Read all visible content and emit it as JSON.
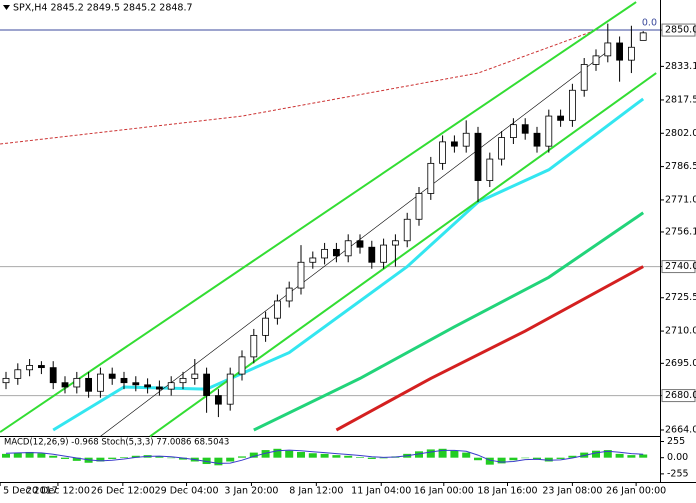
{
  "chart_data": {
    "type": "candlestick",
    "title": "SPX,H4 2845.2 2849.5 2845.2 2848.7",
    "ohlc": [
      [
        2686,
        2691,
        2683,
        2688
      ],
      [
        2688,
        2695,
        2685,
        2692
      ],
      [
        2692,
        2697,
        2689,
        2694
      ],
      [
        2694,
        2696,
        2690,
        2693
      ],
      [
        2693,
        2696,
        2683,
        2686
      ],
      [
        2686,
        2689,
        2681,
        2684
      ],
      [
        2684,
        2691,
        2681,
        2688
      ],
      [
        2688,
        2691,
        2679,
        2682
      ],
      [
        2682,
        2693,
        2679,
        2690
      ],
      [
        2690,
        2693,
        2685,
        2688
      ],
      [
        2688,
        2691,
        2683,
        2686
      ],
      [
        2686,
        2689,
        2682,
        2685
      ],
      [
        2685,
        2688,
        2681,
        2684
      ],
      [
        2684,
        2687,
        2680,
        2683
      ],
      [
        2683,
        2689,
        2680,
        2686
      ],
      [
        2686,
        2691,
        2683,
        2688
      ],
      [
        2688,
        2697,
        2685,
        2690
      ],
      [
        2690,
        2693,
        2672,
        2680
      ],
      [
        2680,
        2683,
        2670,
        2676
      ],
      [
        2676,
        2693,
        2673,
        2690
      ],
      [
        2690,
        2701,
        2687,
        2698
      ],
      [
        2698,
        2711,
        2695,
        2708
      ],
      [
        2708,
        2719,
        2705,
        2716
      ],
      [
        2716,
        2727,
        2713,
        2724
      ],
      [
        2724,
        2733,
        2721,
        2730
      ],
      [
        2730,
        2750,
        2727,
        2742
      ],
      [
        2742,
        2747,
        2739,
        2744
      ],
      [
        2744,
        2751,
        2741,
        2748
      ],
      [
        2748,
        2751,
        2742,
        2745
      ],
      [
        2745,
        2755,
        2742,
        2752
      ],
      [
        2752,
        2755,
        2746,
        2749
      ],
      [
        2749,
        2752,
        2739,
        2742
      ],
      [
        2742,
        2753,
        2739,
        2750
      ],
      [
        2750,
        2755,
        2740,
        2752
      ],
      [
        2752,
        2765,
        2749,
        2762
      ],
      [
        2762,
        2777,
        2759,
        2774
      ],
      [
        2774,
        2791,
        2771,
        2788
      ],
      [
        2788,
        2801,
        2785,
        2798
      ],
      [
        2798,
        2801,
        2793,
        2796
      ],
      [
        2796,
        2808,
        2793,
        2802
      ],
      [
        2802,
        2805,
        2770,
        2780
      ],
      [
        2780,
        2793,
        2777,
        2790
      ],
      [
        2790,
        2803,
        2787,
        2800
      ],
      [
        2800,
        2809,
        2797,
        2806
      ],
      [
        2806,
        2809,
        2799,
        2802
      ],
      [
        2802,
        2805,
        2793,
        2796
      ],
      [
        2796,
        2813,
        2793,
        2810
      ],
      [
        2810,
        2813,
        2805,
        2808
      ],
      [
        2808,
        2825,
        2805,
        2822
      ],
      [
        2822,
        2837,
        2819,
        2834
      ],
      [
        2834,
        2841,
        2831,
        2838
      ],
      [
        2838,
        2853,
        2835,
        2844
      ],
      [
        2844,
        2847,
        2826,
        2836
      ],
      [
        2836,
        2852,
        2830,
        2842
      ],
      [
        2845.2,
        2849.5,
        2845.2,
        2848.7
      ]
    ],
    "up_color": "#000000",
    "down_color": "#000000",
    "ylim": [
      2661.2,
      2858.4
    ],
    "yticks": [
      {
        "value": 2850,
        "label": "2850.0"
      },
      {
        "value": 2833.1,
        "label": "2833.1"
      },
      {
        "value": 2817.5,
        "label": "2817.5"
      },
      {
        "value": 2802,
        "label": "2802.0"
      },
      {
        "value": 2786.5,
        "label": "2786.5"
      },
      {
        "value": 2771,
        "label": "2771.0"
      },
      {
        "value": 2756.1,
        "label": "2756.1"
      },
      {
        "value": 2740,
        "label": "2740.0"
      },
      {
        "value": 2725.5,
        "label": "2725.5"
      },
      {
        "value": 2710,
        "label": "2710.0"
      },
      {
        "value": 2695,
        "label": "2695.0"
      },
      {
        "value": 2680,
        "label": "2680.0"
      },
      {
        "value": 2664,
        "label": "2664.0"
      }
    ],
    "xticks": [
      {
        "value": -0.5,
        "label": "5 Dec 2017"
      },
      {
        "value": 4.4,
        "label": "20 Dec 12:00"
      },
      {
        "value": 9.9,
        "label": "26 Dec 12:00"
      },
      {
        "value": 15.3,
        "label": "29 Dec 04:00"
      },
      {
        "value": 20.8,
        "label": "3 Jan 20:00"
      },
      {
        "value": 26.3,
        "label": "8 Jan 12:00"
      },
      {
        "value": 31.8,
        "label": "11 Jan 04:00"
      },
      {
        "value": 37.1,
        "label": "16 Jan 00:00"
      },
      {
        "value": 42.5,
        "label": "18 Jan 16:00"
      },
      {
        "value": 48,
        "label": "23 Jan 08:00"
      },
      {
        "value": 53.4,
        "label": "26 Jan 00:00"
      }
    ],
    "levels": [
      {
        "value": 2850,
        "color": "#3b4a9c"
      },
      {
        "value": 2740,
        "color": "#aaaaaa"
      },
      {
        "value": 2680,
        "color": "#aaaaaa"
      }
    ],
    "level_label": "0.0",
    "moving_averages": [
      {
        "color": "#33e6f0",
        "width": 3,
        "x": [
          4,
          10,
          17,
          24,
          34,
          40,
          46,
          54
        ],
        "values": [
          2664,
          2684,
          2683,
          2700,
          2740,
          2770,
          2785,
          2818
        ]
      },
      {
        "color": "#22d47a",
        "width": 3,
        "x": [
          21,
          30,
          38,
          46,
          54
        ],
        "values": [
          2664,
          2688,
          2712,
          2735,
          2765
        ]
      },
      {
        "color": "#d42020",
        "width": 3,
        "x": [
          28,
          36,
          44,
          54
        ],
        "values": [
          2664,
          2688,
          2710,
          2740
        ]
      },
      {
        "color": "#cc3333",
        "width": 1,
        "dash": true,
        "x": [
          -0.5,
          20,
          40,
          50
        ],
        "values": [
          2797,
          2810,
          2830,
          2850
        ]
      }
    ],
    "channel": [
      {
        "color": "#33dd33",
        "width": 2,
        "x": [
          -0.5,
          53.4
        ],
        "values": [
          2663,
          2863
        ]
      },
      {
        "color": "#33dd33",
        "width": 2,
        "x": [
          12.2,
          55.1
        ],
        "values": [
          2661,
          2830
        ]
      },
      {
        "color": "#000000",
        "width": 0.6,
        "x": [
          8,
          51.2
        ],
        "values": [
          2661,
          2841
        ]
      }
    ],
    "indicator_label": "MACD(12,26,9) -0.968 Stoch(5,3,3) 77.0086 68.5043",
    "osc_ylim": [
      -320,
      310
    ],
    "osc_yticks": [
      255,
      {
        "value": 0,
        "label": "0.00"
      },
      -255
    ],
    "macd_color": "#22cc22",
    "macd": [
      60,
      80,
      90,
      70,
      30,
      -20,
      -50,
      -80,
      -60,
      -20,
      10,
      30,
      40,
      20,
      0,
      -30,
      -60,
      -100,
      -120,
      -60,
      20,
      80,
      120,
      140,
      110,
      90,
      70,
      60,
      40,
      30,
      10,
      -20,
      -10,
      20,
      60,
      100,
      130,
      140,
      110,
      80,
      -40,
      -110,
      -90,
      -40,
      0,
      -30,
      -60,
      -20,
      30,
      80,
      110,
      120,
      60,
      40,
      50
    ],
    "signal_color": "#3a3acc",
    "signal": [
      70,
      75,
      80,
      75,
      55,
      25,
      -5,
      -35,
      -50,
      -40,
      -20,
      5,
      20,
      25,
      15,
      -5,
      -30,
      -60,
      -90,
      -85,
      -40,
      20,
      70,
      110,
      120,
      110,
      95,
      80,
      65,
      50,
      35,
      15,
      5,
      10,
      30,
      60,
      90,
      115,
      115,
      100,
      40,
      -40,
      -70,
      -60,
      -30,
      -25,
      -40,
      -35,
      -5,
      35,
      75,
      100,
      85,
      65,
      55
    ]
  }
}
